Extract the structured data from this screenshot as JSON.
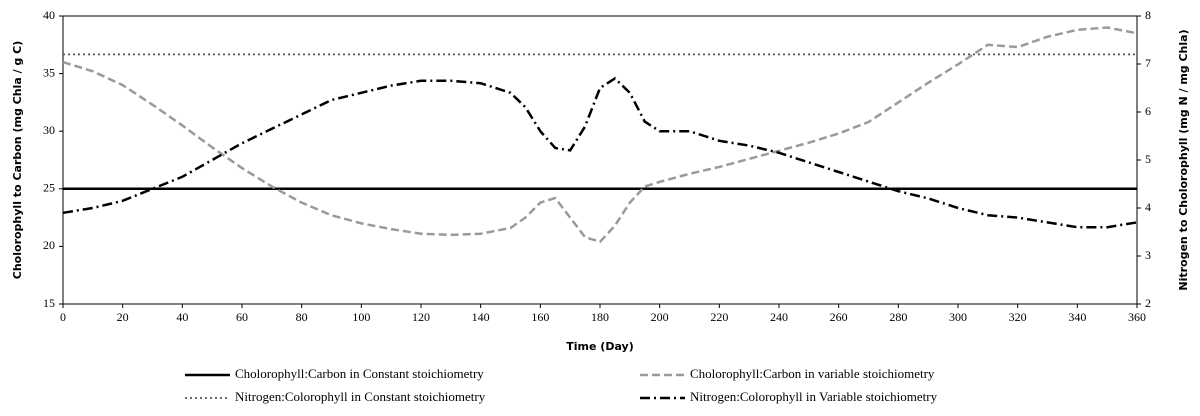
{
  "chart_data": {
    "type": "line",
    "x_label": "Time (Day)",
    "y_label": "Cholorophyll to Carbon (mg Chla / g C)",
    "y2_label": "Nitrogen to Cholorophyll (mg N / mg Chla)",
    "x": [
      0,
      10,
      20,
      30,
      40,
      50,
      60,
      70,
      80,
      90,
      100,
      110,
      120,
      130,
      140,
      150,
      155,
      160,
      165,
      170,
      175,
      180,
      185,
      190,
      195,
      200,
      210,
      220,
      230,
      240,
      250,
      260,
      270,
      280,
      290,
      300,
      310,
      320,
      330,
      340,
      350,
      360
    ],
    "series": [
      {
        "name": "Cholorophyll:Carbon in Constant stoichiometry",
        "color": "#000000",
        "dash": "solid",
        "axis": "y",
        "values": [
          25,
          25,
          25,
          25,
          25,
          25,
          25,
          25,
          25,
          25,
          25,
          25,
          25,
          25,
          25,
          25,
          25,
          25,
          25,
          25,
          25,
          25,
          25,
          25,
          25,
          25,
          25,
          25,
          25,
          25,
          25,
          25,
          25,
          25,
          25,
          25,
          25,
          25,
          25,
          25,
          25,
          25
        ]
      },
      {
        "name": "Cholorophyll:Carbon in variable stoichiometry",
        "color": "#9a9a9a",
        "dash": "dashed",
        "axis": "y",
        "values": [
          36,
          35.2,
          34,
          32.3,
          30.5,
          28.6,
          26.8,
          25.2,
          23.8,
          22.7,
          22,
          21.5,
          21.1,
          21,
          21.1,
          21.6,
          22.5,
          23.8,
          24.2,
          22.5,
          20.8,
          20.4,
          21.8,
          23.8,
          25.2,
          25.6,
          26.3,
          26.9,
          27.6,
          28.3,
          29,
          29.8,
          30.8,
          32.5,
          34.2,
          35.8,
          37.5,
          37.3,
          38.2,
          38.8,
          39,
          38.5
        ]
      },
      {
        "name": "Nitrogen:Colorophyll in Constant stoichiometry",
        "color": "#555555",
        "dash": "dotted",
        "axis": "y2",
        "values": [
          7.2,
          7.2,
          7.2,
          7.2,
          7.2,
          7.2,
          7.2,
          7.2,
          7.2,
          7.2,
          7.2,
          7.2,
          7.2,
          7.2,
          7.2,
          7.2,
          7.2,
          7.2,
          7.2,
          7.2,
          7.2,
          7.2,
          7.2,
          7.2,
          7.2,
          7.2,
          7.2,
          7.2,
          7.2,
          7.2,
          7.2,
          7.2,
          7.2,
          7.2,
          7.2,
          7.2,
          7.2,
          7.2,
          7.2,
          7.2,
          7.2,
          7.2
        ]
      },
      {
        "name": "Nitrogen:Colorophyll in Variable stoichiometry",
        "color": "#000000",
        "dash": "dashdot",
        "axis": "y2",
        "values": [
          3.9,
          4.0,
          4.15,
          4.4,
          4.65,
          5.0,
          5.35,
          5.65,
          5.95,
          6.25,
          6.4,
          6.55,
          6.65,
          6.65,
          6.6,
          6.4,
          6.1,
          5.6,
          5.25,
          5.2,
          5.7,
          6.5,
          6.7,
          6.4,
          5.8,
          5.6,
          5.6,
          5.4,
          5.3,
          5.15,
          4.95,
          4.75,
          4.55,
          4.35,
          4.2,
          4.0,
          3.85,
          3.8,
          3.7,
          3.6,
          3.6,
          3.7
        ]
      }
    ],
    "xlim": [
      0,
      360
    ],
    "xticks": [
      0,
      20,
      40,
      60,
      80,
      100,
      120,
      140,
      160,
      180,
      200,
      220,
      240,
      260,
      280,
      300,
      320,
      340,
      360
    ],
    "ylim": [
      15,
      40
    ],
    "yticks": [
      15,
      20,
      25,
      30,
      35,
      40
    ],
    "y2lim": [
      2,
      8
    ],
    "y2ticks": [
      2,
      3,
      4,
      5,
      6,
      7,
      8
    ]
  }
}
